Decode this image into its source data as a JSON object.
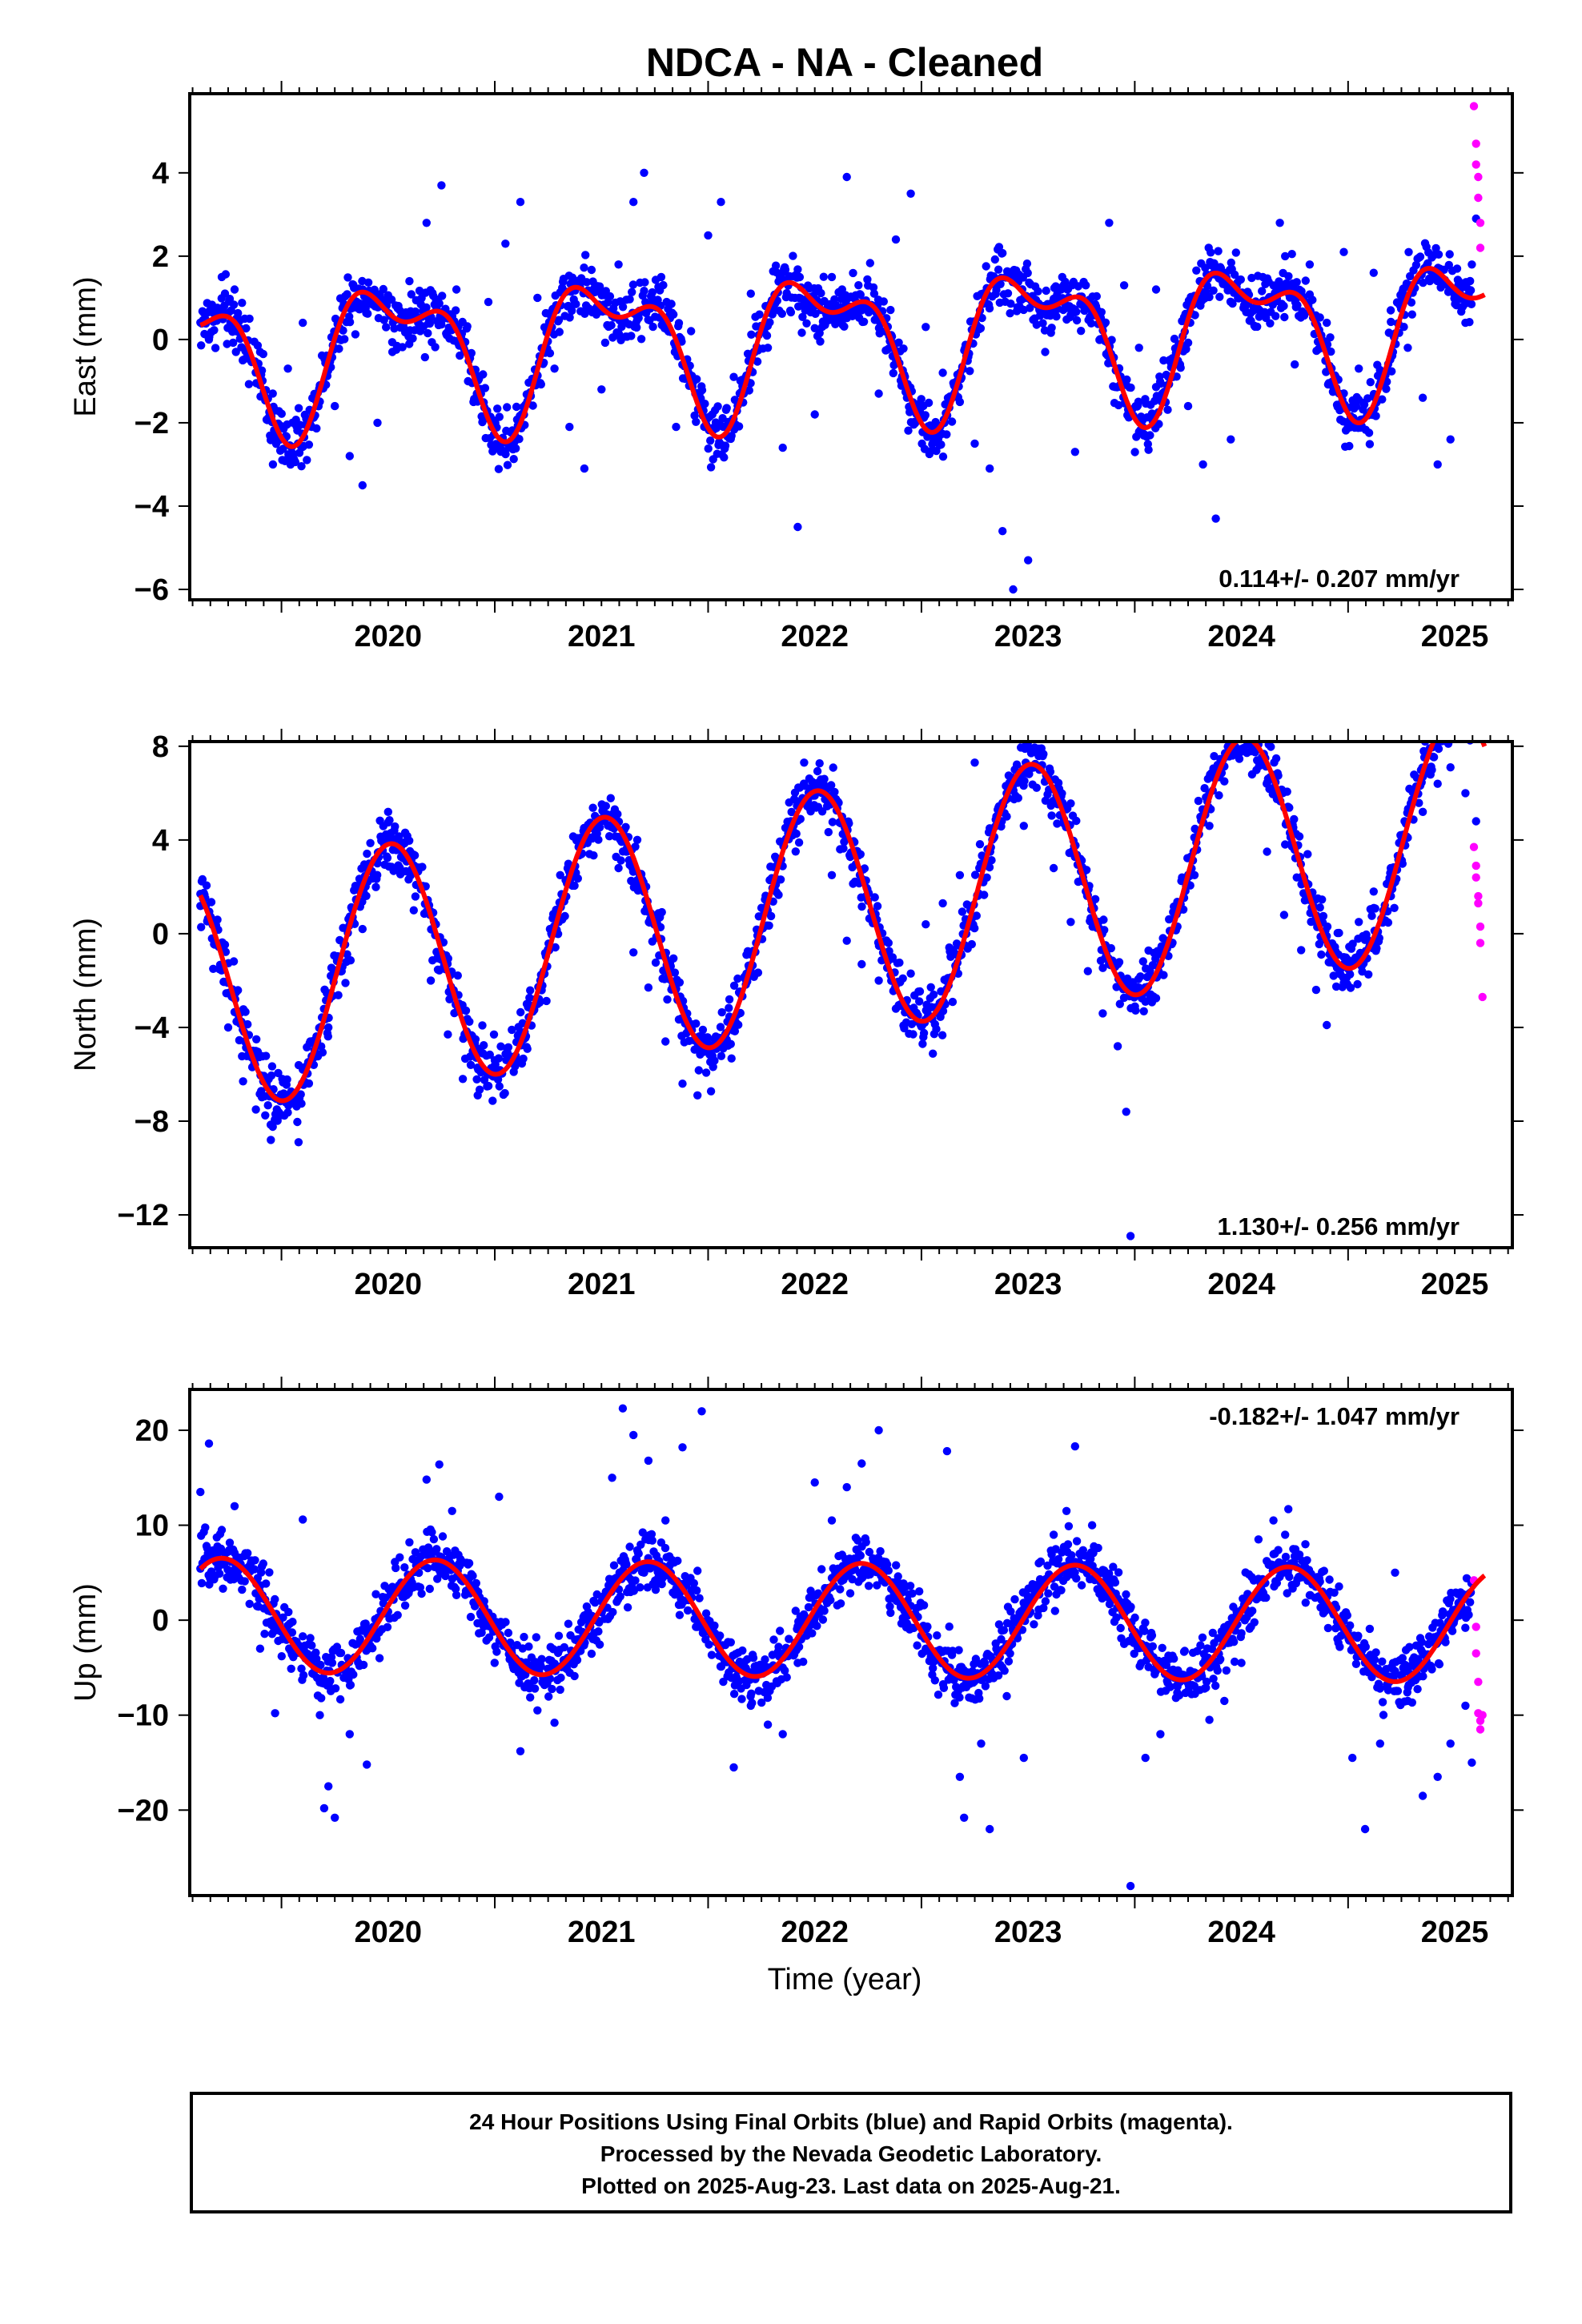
{
  "title": "NDCA  - NA - Cleaned",
  "xlabel": "Time (year)",
  "colors": {
    "final": "#0000ff",
    "rapid": "#ff00ff",
    "model": "#ff0000",
    "frame": "#000000"
  },
  "footer": {
    "line1": "24 Hour Positions Using Final Orbits (blue) and Rapid Orbits (magenta).",
    "line2": "Processed by the Nevada Geodetic Laboratory.",
    "line3": "Plotted on 2025-Aug-23. Last data on 2025-Aug-21."
  },
  "chart_data": [
    {
      "type": "scatter",
      "name": "east",
      "ylabel": "East (mm)",
      "rate_label": "0.114+/- 0.207 mm/yr",
      "rate_position": "bottom-right",
      "xlim": [
        2019.57,
        2025.77
      ],
      "ylim": [
        -6.25,
        5.9
      ],
      "x_ticks": [
        2020,
        2021,
        2022,
        2023,
        2024,
        2025
      ],
      "y_ticks": [
        -6,
        -4,
        -2,
        0,
        2,
        4
      ],
      "y_tick_labels": [
        "−6",
        "−4",
        "−2",
        "0",
        "2",
        "4"
      ],
      "model": {
        "amp_annual": 1.5,
        "phase_annual": 2020.53,
        "amp_semi": 0.8,
        "phase_semi": 2020.31,
        "trend": 0.114,
        "ref_epoch": 2022.6,
        "offset": 0
      },
      "final_points": [
        [
          2019.66,
          0.0
        ],
        [
          2019.72,
          1.5
        ],
        [
          2019.78,
          1.2
        ],
        [
          2019.85,
          0.5
        ],
        [
          2019.9,
          -0.3
        ],
        [
          2019.96,
          -3.0
        ],
        [
          2020.03,
          -0.7
        ],
        [
          2020.1,
          0.4
        ],
        [
          2020.18,
          -1.1
        ],
        [
          2020.25,
          -1.6
        ],
        [
          2020.32,
          -2.8
        ],
        [
          2020.38,
          -3.5
        ],
        [
          2020.45,
          -2.0
        ],
        [
          2020.52,
          -0.3
        ],
        [
          2020.6,
          1.4
        ],
        [
          2020.68,
          2.8
        ],
        [
          2020.75,
          3.7
        ],
        [
          2020.82,
          1.2
        ],
        [
          2020.9,
          -1.5
        ],
        [
          2020.97,
          0.9
        ],
        [
          2021.05,
          2.3
        ],
        [
          2021.12,
          3.3
        ],
        [
          2021.2,
          1.0
        ],
        [
          2021.28,
          -0.7
        ],
        [
          2021.35,
          -2.1
        ],
        [
          2021.42,
          -3.1
        ],
        [
          2021.5,
          -1.2
        ],
        [
          2021.58,
          1.8
        ],
        [
          2021.65,
          3.3
        ],
        [
          2021.7,
          4.0
        ],
        [
          2021.78,
          1.5
        ],
        [
          2021.85,
          -2.1
        ],
        [
          2021.92,
          0.2
        ],
        [
          2022.0,
          2.5
        ],
        [
          2022.06,
          3.3
        ],
        [
          2022.12,
          -0.9
        ],
        [
          2022.2,
          1.1
        ],
        [
          2022.28,
          -0.2
        ],
        [
          2022.35,
          -2.6
        ],
        [
          2022.42,
          -4.5
        ],
        [
          2022.5,
          -1.8
        ],
        [
          2022.58,
          1.5
        ],
        [
          2022.65,
          3.9
        ],
        [
          2022.72,
          0.7
        ],
        [
          2022.8,
          -1.3
        ],
        [
          2022.88,
          2.4
        ],
        [
          2022.95,
          3.5
        ],
        [
          2023.02,
          0.3
        ],
        [
          2023.1,
          -0.8
        ],
        [
          2023.18,
          -1.5
        ],
        [
          2023.25,
          -2.5
        ],
        [
          2023.32,
          -3.1
        ],
        [
          2023.38,
          -4.6
        ],
        [
          2023.43,
          -6.0
        ],
        [
          2023.5,
          -5.3
        ],
        [
          2023.58,
          -0.3
        ],
        [
          2023.66,
          1.5
        ],
        [
          2023.72,
          -2.7
        ],
        [
          2023.8,
          0.7
        ],
        [
          2023.88,
          2.8
        ],
        [
          2023.95,
          1.3
        ],
        [
          2024.02,
          -0.2
        ],
        [
          2024.1,
          1.2
        ],
        [
          2024.18,
          -0.9
        ],
        [
          2024.25,
          -1.6
        ],
        [
          2024.32,
          -3.0
        ],
        [
          2024.38,
          -4.3
        ],
        [
          2024.45,
          -2.4
        ],
        [
          2024.52,
          0.8
        ],
        [
          2024.6,
          1.5
        ],
        [
          2024.68,
          2.8
        ],
        [
          2024.75,
          -0.6
        ],
        [
          2024.82,
          1.8
        ],
        [
          2024.9,
          0.4
        ],
        [
          2024.98,
          2.1
        ],
        [
          2025.05,
          -0.7
        ],
        [
          2025.12,
          1.6
        ],
        [
          2025.2,
          0.7
        ],
        [
          2025.28,
          -0.2
        ],
        [
          2025.35,
          -1.4
        ],
        [
          2025.42,
          -3.0
        ],
        [
          2025.48,
          -2.4
        ],
        [
          2025.55,
          0.4
        ],
        [
          2025.58,
          1.8
        ],
        [
          2025.6,
          2.9
        ]
      ],
      "rapid_points": [
        [
          2025.59,
          5.6
        ],
        [
          2025.6,
          4.7
        ],
        [
          2025.6,
          4.2
        ],
        [
          2025.61,
          3.9
        ],
        [
          2025.61,
          3.4
        ],
        [
          2025.62,
          2.8
        ],
        [
          2025.62,
          2.2
        ]
      ]
    },
    {
      "type": "scatter",
      "name": "north",
      "ylabel": "North (mm)",
      "rate_label": "1.130+/- 0.256 mm/yr",
      "rate_position": "bottom-right",
      "xlim": [
        2019.57,
        2025.77
      ],
      "ylim": [
        -13.4,
        8.2
      ],
      "x_ticks": [
        2020,
        2021,
        2022,
        2023,
        2024,
        2025
      ],
      "y_ticks": [
        -12,
        -8,
        -4,
        0,
        4,
        8
      ],
      "y_tick_labels": [
        "−12",
        "−8",
        "−4",
        "0",
        "4",
        "8"
      ],
      "model": {
        "amp_annual": 5.2,
        "phase_annual": 2020.51,
        "amp_semi": 0,
        "phase_semi": 2020.3,
        "trend": 1.13,
        "ref_epoch": 2022.6,
        "offset": 1.0
      },
      "final_points": [
        [
          2019.62,
          1.7
        ],
        [
          2019.68,
          -1.5
        ],
        [
          2019.75,
          -4.0
        ],
        [
          2019.82,
          -6.3
        ],
        [
          2019.88,
          -7.5
        ],
        [
          2019.95,
          -8.8
        ],
        [
          2020.02,
          -7.2
        ],
        [
          2020.08,
          -8.9
        ],
        [
          2020.15,
          -5.3
        ],
        [
          2020.22,
          -4.0
        ],
        [
          2020.3,
          -2.1
        ],
        [
          2020.38,
          0.2
        ],
        [
          2020.45,
          3.0
        ],
        [
          2020.5,
          5.2
        ],
        [
          2020.56,
          3.7
        ],
        [
          2020.62,
          1.0
        ],
        [
          2020.7,
          -2.0
        ],
        [
          2020.78,
          -4.3
        ],
        [
          2020.85,
          -6.2
        ],
        [
          2020.92,
          -6.9
        ],
        [
          2021.0,
          -5.4
        ],
        [
          2021.08,
          -4.1
        ],
        [
          2021.15,
          -3.0
        ],
        [
          2021.22,
          -1.8
        ],
        [
          2021.3,
          0.5
        ],
        [
          2021.38,
          2.6
        ],
        [
          2021.45,
          4.1
        ],
        [
          2021.52,
          5.1
        ],
        [
          2021.58,
          2.8
        ],
        [
          2021.65,
          -0.8
        ],
        [
          2021.72,
          -2.3
        ],
        [
          2021.8,
          -4.6
        ],
        [
          2021.88,
          -6.4
        ],
        [
          2021.95,
          -6.9
        ],
        [
          2022.03,
          -4.5
        ],
        [
          2022.1,
          -2.8
        ],
        [
          2022.18,
          -0.9
        ],
        [
          2022.25,
          1.1
        ],
        [
          2022.32,
          3.2
        ],
        [
          2022.38,
          5.6
        ],
        [
          2022.45,
          7.3
        ],
        [
          2022.52,
          6.4
        ],
        [
          2022.58,
          2.5
        ],
        [
          2022.65,
          -0.3
        ],
        [
          2022.72,
          -1.3
        ],
        [
          2022.8,
          -2.0
        ],
        [
          2022.88,
          -3.2
        ],
        [
          2022.95,
          -1.7
        ],
        [
          2023.02,
          0.4
        ],
        [
          2023.1,
          1.3
        ],
        [
          2023.18,
          2.5
        ],
        [
          2023.25,
          7.3
        ],
        [
          2023.32,
          4.5
        ],
        [
          2023.4,
          5.0
        ],
        [
          2023.48,
          4.6
        ],
        [
          2023.55,
          7.9
        ],
        [
          2023.62,
          2.8
        ],
        [
          2023.7,
          0.5
        ],
        [
          2023.78,
          -1.6
        ],
        [
          2023.85,
          -3.4
        ],
        [
          2023.92,
          -4.8
        ],
        [
          2023.96,
          -7.6
        ],
        [
          2023.98,
          -12.9
        ],
        [
          2024.05,
          -2.9
        ],
        [
          2024.12,
          -1.3
        ],
        [
          2024.2,
          0.3
        ],
        [
          2024.28,
          2.5
        ],
        [
          2024.35,
          4.6
        ],
        [
          2024.42,
          6.5
        ],
        [
          2024.48,
          7.7
        ],
        [
          2024.55,
          6.8
        ],
        [
          2024.62,
          3.5
        ],
        [
          2024.7,
          0.8
        ],
        [
          2024.78,
          -0.7
        ],
        [
          2024.85,
          -2.4
        ],
        [
          2024.9,
          -3.9
        ],
        [
          2024.98,
          -1.0
        ],
        [
          2025.05,
          0.5
        ],
        [
          2025.12,
          1.8
        ],
        [
          2025.2,
          2.8
        ],
        [
          2025.28,
          4.1
        ],
        [
          2025.35,
          5.2
        ],
        [
          2025.42,
          6.4
        ],
        [
          2025.48,
          7.1
        ],
        [
          2025.55,
          6.0
        ],
        [
          2025.6,
          4.8
        ]
      ],
      "rapid_points": [
        [
          2025.59,
          3.7
        ],
        [
          2025.6,
          2.9
        ],
        [
          2025.6,
          2.4
        ],
        [
          2025.61,
          1.6
        ],
        [
          2025.61,
          1.3
        ],
        [
          2025.62,
          0.3
        ],
        [
          2025.62,
          -0.4
        ],
        [
          2025.63,
          -2.7
        ]
      ]
    },
    {
      "type": "scatter",
      "name": "up",
      "ylabel": "Up (mm)",
      "rate_label": "-0.182+/- 1.047 mm/yr",
      "rate_position": "top-right",
      "xlim": [
        2019.57,
        2025.77
      ],
      "ylim": [
        -29,
        24.3
      ],
      "x_ticks": [
        2020,
        2021,
        2022,
        2023,
        2024,
        2025
      ],
      "y_ticks": [
        -20,
        -10,
        0,
        10,
        20
      ],
      "y_tick_labels": [
        "−20",
        "−10",
        "0",
        "10",
        "20"
      ],
      "model": {
        "amp_annual": 6.0,
        "phase_annual": 2020.72,
        "amp_semi": 0,
        "phase_semi": 2020.5,
        "trend": -0.182,
        "ref_epoch": 2022.6,
        "offset": 0
      },
      "final_points": [
        [
          2019.62,
          13.5
        ],
        [
          2019.66,
          18.6
        ],
        [
          2019.72,
          9.5
        ],
        [
          2019.78,
          12.0
        ],
        [
          2019.85,
          5.7
        ],
        [
          2019.9,
          -3.0
        ],
        [
          2019.97,
          -9.8
        ],
        [
          2020.05,
          -1.3
        ],
        [
          2020.1,
          10.6
        ],
        [
          2020.18,
          -10.0
        ],
        [
          2020.22,
          -17.5
        ],
        [
          2020.2,
          -19.8
        ],
        [
          2020.25,
          -20.8
        ],
        [
          2020.32,
          -12.0
        ],
        [
          2020.4,
          -15.2
        ],
        [
          2020.46,
          -4.0
        ],
        [
          2020.52,
          3.5
        ],
        [
          2020.6,
          8.2
        ],
        [
          2020.68,
          14.8
        ],
        [
          2020.74,
          16.4
        ],
        [
          2020.8,
          11.5
        ],
        [
          2020.88,
          6.0
        ],
        [
          2020.95,
          2.0
        ],
        [
          2021.02,
          13.0
        ],
        [
          2021.08,
          -3.5
        ],
        [
          2021.12,
          -13.8
        ],
        [
          2021.2,
          -9.5
        ],
        [
          2021.28,
          -10.8
        ],
        [
          2021.35,
          -4.5
        ],
        [
          2021.42,
          0.5
        ],
        [
          2021.5,
          2.0
        ],
        [
          2021.55,
          15.0
        ],
        [
          2021.6,
          22.3
        ],
        [
          2021.65,
          19.5
        ],
        [
          2021.72,
          16.8
        ],
        [
          2021.8,
          10.5
        ],
        [
          2021.88,
          18.2
        ],
        [
          2021.95,
          5.2
        ],
        [
          2021.97,
          22.0
        ],
        [
          2022.05,
          -3.0
        ],
        [
          2022.12,
          -15.5
        ],
        [
          2022.2,
          -9.0
        ],
        [
          2022.28,
          -11.0
        ],
        [
          2022.35,
          -12.0
        ],
        [
          2022.42,
          -4.5
        ],
        [
          2022.5,
          14.5
        ],
        [
          2022.58,
          10.5
        ],
        [
          2022.65,
          14.0
        ],
        [
          2022.72,
          16.5
        ],
        [
          2022.8,
          20.0
        ],
        [
          2022.88,
          4.0
        ],
        [
          2022.95,
          1.5
        ],
        [
          2023.02,
          -3.0
        ],
        [
          2023.12,
          17.8
        ],
        [
          2023.18,
          -16.5
        ],
        [
          2023.2,
          -20.8
        ],
        [
          2023.28,
          -13.0
        ],
        [
          2023.32,
          -22.0
        ],
        [
          2023.4,
          -8.0
        ],
        [
          2023.48,
          -14.5
        ],
        [
          2023.55,
          6.0
        ],
        [
          2023.62,
          9.0
        ],
        [
          2023.68,
          11.5
        ],
        [
          2023.72,
          18.3
        ],
        [
          2023.8,
          10.0
        ],
        [
          2023.88,
          3.5
        ],
        [
          2023.95,
          -2.5
        ],
        [
          2023.98,
          -28.0
        ],
        [
          2024.05,
          -14.5
        ],
        [
          2024.12,
          -12.0
        ],
        [
          2024.2,
          -7.0
        ],
        [
          2024.28,
          -5.5
        ],
        [
          2024.35,
          -10.5
        ],
        [
          2024.42,
          -8.5
        ],
        [
          2024.5,
          -4.5
        ],
        [
          2024.58,
          8.5
        ],
        [
          2024.65,
          10.5
        ],
        [
          2024.72,
          11.7
        ],
        [
          2024.8,
          8.0
        ],
        [
          2024.88,
          3.0
        ],
        [
          2024.95,
          -2.0
        ],
        [
          2025.02,
          -14.5
        ],
        [
          2025.08,
          -22.0
        ],
        [
          2025.15,
          -13.0
        ],
        [
          2025.22,
          5.0
        ],
        [
          2025.28,
          -8.5
        ],
        [
          2025.35,
          -18.5
        ],
        [
          2025.42,
          -16.5
        ],
        [
          2025.48,
          -13.0
        ],
        [
          2025.55,
          -9.0
        ],
        [
          2025.58,
          -15.0
        ]
      ],
      "rapid_points": [
        [
          2025.59,
          4.2
        ],
        [
          2025.6,
          -0.7
        ],
        [
          2025.6,
          -3.5
        ],
        [
          2025.61,
          -6.5
        ],
        [
          2025.61,
          -9.8
        ],
        [
          2025.62,
          -10.6
        ],
        [
          2025.62,
          -11.5
        ],
        [
          2025.63,
          -10.0
        ]
      ]
    }
  ]
}
